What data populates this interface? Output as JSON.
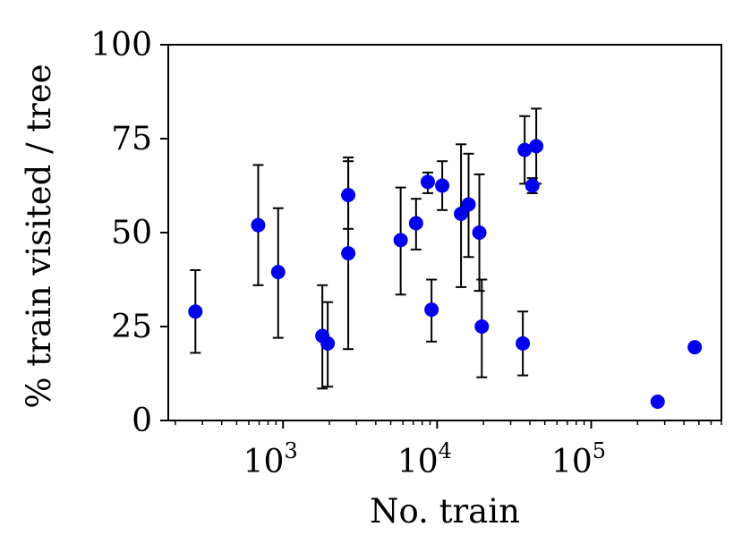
{
  "chart_data": {
    "type": "scatter",
    "title": "",
    "xlabel": "No. train",
    "ylabel": "% train visited / tree",
    "xscale": "log",
    "xlim": [
      180,
      700000
    ],
    "ylim": [
      0,
      100
    ],
    "y_ticks": [
      0,
      25,
      50,
      75,
      100
    ],
    "x_ticks": [
      {
        "value": 1000,
        "base": "10",
        "exp": "3"
      },
      {
        "value": 10000,
        "base": "10",
        "exp": "4"
      },
      {
        "value": 100000,
        "base": "10",
        "exp": "5"
      }
    ],
    "grid": false,
    "legend": "none",
    "marker_color": "#0000ee",
    "errorbar_color": "#000000",
    "points": [
      {
        "x": 270,
        "y": 29,
        "lo": 18,
        "hi": 40
      },
      {
        "x": 690,
        "y": 52,
        "lo": 36,
        "hi": 68
      },
      {
        "x": 930,
        "y": 39.5,
        "lo": 22,
        "hi": 56.5
      },
      {
        "x": 1800,
        "y": 22.5,
        "lo": 8.5,
        "hi": 36
      },
      {
        "x": 1950,
        "y": 20.5,
        "lo": 9,
        "hi": 31.5
      },
      {
        "x": 2650,
        "y": 60,
        "lo": 51,
        "hi": 70
      },
      {
        "x": 2650,
        "y": 44.5,
        "lo": 19,
        "hi": 69
      },
      {
        "x": 5800,
        "y": 48,
        "lo": 33.5,
        "hi": 62
      },
      {
        "x": 7300,
        "y": 52.5,
        "lo": 45.5,
        "hi": 59
      },
      {
        "x": 8700,
        "y": 63.5,
        "lo": 60.5,
        "hi": 66
      },
      {
        "x": 9200,
        "y": 29.5,
        "lo": 21,
        "hi": 37.5
      },
      {
        "x": 10800,
        "y": 62.5,
        "lo": 56,
        "hi": 69
      },
      {
        "x": 14300,
        "y": 55,
        "lo": 35.5,
        "hi": 73.5
      },
      {
        "x": 16000,
        "y": 57.5,
        "lo": 43.5,
        "hi": 71
      },
      {
        "x": 18800,
        "y": 50,
        "lo": 34.5,
        "hi": 65.5
      },
      {
        "x": 19500,
        "y": 25,
        "lo": 11.5,
        "hi": 37.5
      },
      {
        "x": 36000,
        "y": 20.5,
        "lo": 12,
        "hi": 29
      },
      {
        "x": 37000,
        "y": 72,
        "lo": 63,
        "hi": 81
      },
      {
        "x": 41500,
        "y": 62.5,
        "lo": 60.5,
        "hi": 64.5
      },
      {
        "x": 44000,
        "y": 73,
        "lo": 63,
        "hi": 83
      },
      {
        "x": 270000,
        "y": 5
      },
      {
        "x": 470000,
        "y": 19.5
      }
    ]
  }
}
